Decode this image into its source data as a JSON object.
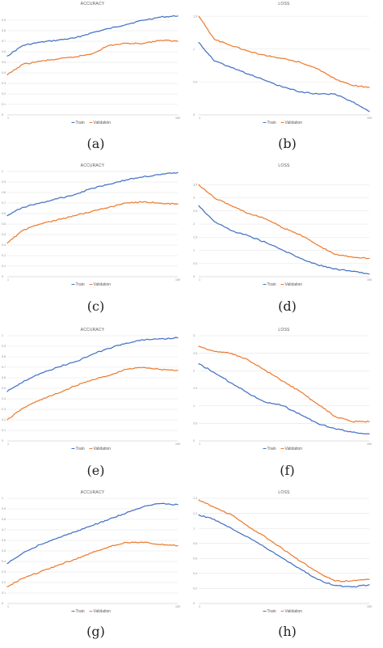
{
  "colors": {
    "train": "#4472c4",
    "validation": "#ed7d31",
    "grid": "#e4e4e4",
    "text": "#595959"
  },
  "legend": {
    "train": "Train",
    "validation": "Validation"
  },
  "chart_data": [
    {
      "caption": "(a)",
      "title": "ACCURACY",
      "type": "line",
      "metric": "accuracy",
      "x_ticks": [
        "1",
        "100"
      ],
      "ylim": [
        0,
        1
      ],
      "yticks": [
        0,
        0.1,
        0.2,
        0.3,
        0.4,
        0.5,
        0.6,
        0.7,
        0.8,
        0.9
      ],
      "x": [
        1,
        10,
        20,
        30,
        40,
        50,
        60,
        70,
        80,
        90,
        100
      ],
      "series": [
        {
          "name": "Train",
          "values": [
            0.56,
            0.66,
            0.69,
            0.71,
            0.73,
            0.78,
            0.82,
            0.86,
            0.9,
            0.93,
            0.94
          ]
        },
        {
          "name": "Validation",
          "values": [
            0.38,
            0.48,
            0.51,
            0.53,
            0.55,
            0.58,
            0.66,
            0.68,
            0.68,
            0.71,
            0.7
          ]
        }
      ]
    },
    {
      "caption": "(b)",
      "title": "LOSS",
      "type": "line",
      "metric": "loss",
      "x_ticks": [
        "1",
        "100"
      ],
      "ylim": [
        0,
        1.6
      ],
      "yticks": [
        0,
        0.5,
        1.0,
        1.5
      ],
      "x": [
        1,
        10,
        20,
        30,
        40,
        50,
        60,
        70,
        80,
        90,
        100
      ],
      "series": [
        {
          "name": "Train",
          "values": [
            1.1,
            0.82,
            0.72,
            0.62,
            0.52,
            0.42,
            0.35,
            0.32,
            0.32,
            0.2,
            0.05
          ]
        },
        {
          "name": "Validation",
          "values": [
            1.5,
            1.15,
            1.05,
            0.97,
            0.9,
            0.86,
            0.8,
            0.7,
            0.55,
            0.45,
            0.42
          ]
        }
      ]
    },
    {
      "caption": "(c)",
      "title": "ACCURACY",
      "type": "line",
      "metric": "accuracy",
      "x_ticks": [
        "1",
        "100"
      ],
      "ylim": [
        0,
        1
      ],
      "yticks": [
        0,
        0.1,
        0.2,
        0.3,
        0.4,
        0.5,
        0.6,
        0.7,
        0.8,
        0.9,
        1.0
      ],
      "x": [
        1,
        10,
        20,
        30,
        40,
        50,
        60,
        70,
        80,
        90,
        100
      ],
      "series": [
        {
          "name": "Train",
          "values": [
            0.58,
            0.66,
            0.7,
            0.74,
            0.78,
            0.84,
            0.88,
            0.92,
            0.95,
            0.97,
            0.99
          ]
        },
        {
          "name": "Validation",
          "values": [
            0.32,
            0.44,
            0.5,
            0.54,
            0.58,
            0.62,
            0.66,
            0.7,
            0.71,
            0.7,
            0.69
          ]
        }
      ]
    },
    {
      "caption": "(d)",
      "title": "LOSS",
      "type": "line",
      "metric": "loss",
      "x_ticks": [
        "1",
        "100"
      ],
      "ylim": [
        0,
        4
      ],
      "yticks": [
        0,
        0.5,
        1.0,
        1.5,
        2.0,
        2.5,
        3.0,
        3.5
      ],
      "x": [
        1,
        10,
        20,
        30,
        40,
        50,
        60,
        70,
        80,
        90,
        100
      ],
      "series": [
        {
          "name": "Train",
          "values": [
            2.7,
            2.1,
            1.75,
            1.55,
            1.3,
            1.0,
            0.7,
            0.45,
            0.3,
            0.2,
            0.1
          ]
        },
        {
          "name": "Validation",
          "values": [
            3.5,
            3.0,
            2.7,
            2.4,
            2.2,
            1.85,
            1.6,
            1.2,
            0.85,
            0.75,
            0.7
          ]
        }
      ]
    },
    {
      "caption": "(e)",
      "title": "ACCURACY",
      "type": "line",
      "metric": "accuracy",
      "x_ticks": [
        "1",
        "100"
      ],
      "ylim": [
        0,
        1
      ],
      "yticks": [
        0,
        0.1,
        0.2,
        0.3,
        0.4,
        0.5,
        0.6,
        0.7,
        0.8,
        0.9,
        1.0
      ],
      "x": [
        1,
        10,
        20,
        30,
        40,
        50,
        60,
        70,
        80,
        90,
        100
      ],
      "series": [
        {
          "name": "Train",
          "values": [
            0.47,
            0.56,
            0.64,
            0.7,
            0.75,
            0.82,
            0.88,
            0.93,
            0.96,
            0.97,
            0.98
          ]
        },
        {
          "name": "Validation",
          "values": [
            0.2,
            0.31,
            0.39,
            0.45,
            0.52,
            0.58,
            0.62,
            0.68,
            0.7,
            0.68,
            0.67
          ]
        }
      ]
    },
    {
      "caption": "(f)",
      "title": "LOSS",
      "type": "line",
      "metric": "loss",
      "x_ticks": [
        "1",
        "100"
      ],
      "ylim": [
        0,
        3
      ],
      "yticks": [
        0,
        0.5,
        1.0,
        1.5,
        2.0,
        2.5,
        3.0
      ],
      "x": [
        1,
        10,
        20,
        30,
        40,
        50,
        60,
        70,
        80,
        90,
        100
      ],
      "series": [
        {
          "name": "Train",
          "values": [
            2.2,
            1.95,
            1.65,
            1.35,
            1.1,
            1.0,
            0.75,
            0.5,
            0.35,
            0.25,
            0.2
          ]
        },
        {
          "name": "Validation",
          "values": [
            2.7,
            2.55,
            2.5,
            2.3,
            2.0,
            1.7,
            1.4,
            1.05,
            0.7,
            0.55,
            0.55
          ]
        }
      ]
    },
    {
      "caption": "(g)",
      "title": "ACCURACY",
      "type": "line",
      "metric": "accuracy",
      "x_ticks": [
        "1",
        "100"
      ],
      "ylim": [
        0,
        1
      ],
      "yticks": [
        0,
        0.1,
        0.2,
        0.3,
        0.4,
        0.5,
        0.6,
        0.7,
        0.8,
        0.9,
        1.0
      ],
      "x": [
        1,
        10,
        20,
        30,
        40,
        50,
        60,
        70,
        80,
        90,
        100
      ],
      "series": [
        {
          "name": "Train",
          "values": [
            0.38,
            0.48,
            0.56,
            0.62,
            0.68,
            0.74,
            0.8,
            0.86,
            0.92,
            0.95,
            0.94
          ]
        },
        {
          "name": "Validation",
          "values": [
            0.16,
            0.24,
            0.3,
            0.36,
            0.42,
            0.48,
            0.54,
            0.58,
            0.58,
            0.56,
            0.55
          ]
        }
      ]
    },
    {
      "caption": "(h)",
      "title": "LOSS",
      "type": "line",
      "metric": "loss",
      "x_ticks": [
        "1",
        "100"
      ],
      "ylim": [
        0,
        1.4
      ],
      "yticks": [
        0,
        0.2,
        0.4,
        0.6,
        0.8,
        1.0,
        1.2,
        1.4
      ],
      "x": [
        1,
        10,
        20,
        30,
        40,
        50,
        60,
        70,
        80,
        90,
        100
      ],
      "series": [
        {
          "name": "Train",
          "values": [
            1.18,
            1.12,
            1.0,
            0.88,
            0.74,
            0.6,
            0.46,
            0.32,
            0.24,
            0.22,
            0.25
          ]
        },
        {
          "name": "Validation",
          "values": [
            1.38,
            1.28,
            1.18,
            1.02,
            0.88,
            0.72,
            0.56,
            0.42,
            0.3,
            0.3,
            0.32
          ]
        }
      ]
    }
  ]
}
